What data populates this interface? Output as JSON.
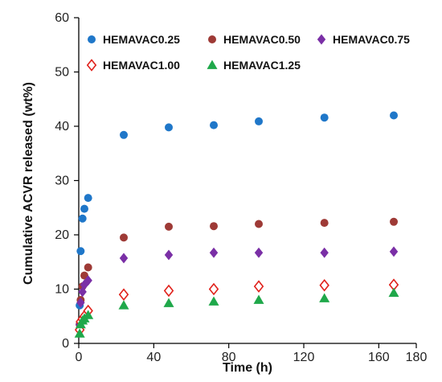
{
  "chart_data": {
    "type": "scatter",
    "xlabel": "Time (h)",
    "ylabel": "Cumulative ACVR released (wt%)",
    "xlim": [
      0,
      180
    ],
    "ylim": [
      0,
      60
    ],
    "xticks": [
      0,
      40,
      80,
      120,
      160,
      180
    ],
    "yticks": [
      0,
      10,
      20,
      30,
      40,
      50,
      60
    ],
    "grid": false,
    "legend_position": "top",
    "series": [
      {
        "name": "HEMAVAC0.25",
        "marker": "circle",
        "color": "#1f77c9",
        "x": [
          0.5,
          1,
          2,
          3,
          5,
          24,
          48,
          72,
          96,
          131,
          168
        ],
        "y": [
          7,
          17,
          23,
          24.8,
          26.8,
          38.4,
          39.8,
          40.2,
          40.9,
          41.6,
          42.0
        ]
      },
      {
        "name": "HEMAVAC0.50",
        "marker": "circle",
        "color": "#9e3a36",
        "x": [
          0.5,
          1,
          2,
          3,
          5,
          24,
          48,
          72,
          96,
          131,
          168
        ],
        "y": [
          3.5,
          8,
          10.5,
          12.5,
          14,
          19.5,
          21.5,
          21.6,
          22.0,
          22.2,
          22.4
        ]
      },
      {
        "name": "HEMAVAC0.75",
        "marker": "diamond",
        "color": "#7a2fa6",
        "x": [
          0.5,
          1,
          2,
          3,
          5,
          24,
          48,
          72,
          96,
          131,
          168
        ],
        "y": [
          3.5,
          7.5,
          9.5,
          10.8,
          11.6,
          15.7,
          16.3,
          16.7,
          16.7,
          16.7,
          16.9
        ]
      },
      {
        "name": "HEMAVAC1.00",
        "marker": "diamond-open",
        "color": "#e0211b",
        "x": [
          0.5,
          1,
          2,
          3,
          5,
          24,
          48,
          72,
          96,
          131,
          168
        ],
        "y": [
          2.5,
          4,
          4.5,
          5,
          6,
          9,
          9.7,
          10,
          10.5,
          10.7,
          10.8
        ]
      },
      {
        "name": "HEMAVAC1.25",
        "marker": "triangle",
        "color": "#1fa84a",
        "x": [
          0.5,
          1,
          2,
          3,
          5,
          24,
          48,
          72,
          96,
          131,
          168
        ],
        "y": [
          1.8,
          3.5,
          4.2,
          4.6,
          5.2,
          7.0,
          7.4,
          7.7,
          8.0,
          8.3,
          9.3
        ]
      }
    ]
  }
}
